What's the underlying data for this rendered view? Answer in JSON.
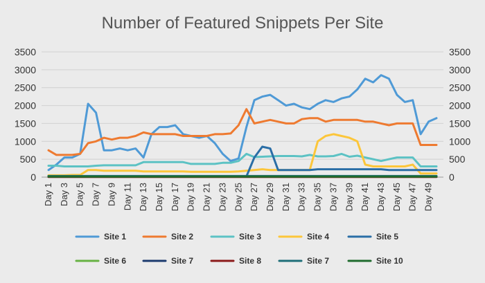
{
  "chart_data": {
    "type": "line",
    "title": "Number of Featured Snippets Per Site",
    "xlabel": "",
    "ylabel": "",
    "ylim": [
      0,
      3500
    ],
    "yticks": [
      0,
      500,
      1000,
      1500,
      2000,
      2500,
      3000,
      3500
    ],
    "secondary_yticks": [
      0,
      500,
      1000,
      1500,
      2000,
      2500,
      3000,
      3500
    ],
    "grid": true,
    "legend_position": "bottom",
    "x": [
      "Day 1",
      "Day 2",
      "Day 3",
      "Day 4",
      "Day 5",
      "Day 6",
      "Day 7",
      "Day 8",
      "Day 9",
      "Day 10",
      "Day 11",
      "Day 12",
      "Day 13",
      "Day 14",
      "Day 15",
      "Day 16",
      "Day 17",
      "Day 18",
      "Day 19",
      "Day 20",
      "Day 21",
      "Day 22",
      "Day 23",
      "Day 24",
      "Day 25",
      "Day 26",
      "Day 27",
      "Day 28",
      "Day 29",
      "Day 30",
      "Day 31",
      "Day 32",
      "Day 33",
      "Day 34",
      "Day 35",
      "Day 36",
      "Day 37",
      "Day 38",
      "Day 39",
      "Day 40",
      "Day 41",
      "Day 42",
      "Day 43",
      "Day 44",
      "Day 45",
      "Day 46",
      "Day 47",
      "Day 48",
      "Day 49",
      "Day 50"
    ],
    "x_tick_labels_shown": [
      "Day 1",
      "Day 3",
      "Day 5",
      "Day 7",
      "Day 9",
      "Day 11",
      "Day 13",
      "Day 15",
      "Day 17",
      "Day 19",
      "Day 21",
      "Day 23",
      "Day 25",
      "Day 27",
      "Day 29",
      "Day 31",
      "Day 33",
      "Day 35",
      "Day 37",
      "Day 39",
      "Day 41",
      "Day 43",
      "Day 45",
      "Day 47",
      "Day 49"
    ],
    "series": [
      {
        "name": "Site 1",
        "color": "#4f9ad6",
        "values": [
          200,
          350,
          550,
          550,
          650,
          2050,
          1800,
          750,
          750,
          800,
          750,
          800,
          550,
          1200,
          1400,
          1400,
          1450,
          1200,
          1150,
          1100,
          1150,
          950,
          650,
          450,
          520,
          1400,
          2150,
          2250,
          2300,
          2150,
          2000,
          2050,
          1950,
          1900,
          2050,
          2150,
          2100,
          2200,
          2250,
          2450,
          2750,
          2650,
          2850,
          2750,
          2300,
          2100,
          2150,
          1200,
          1550,
          1650
        ]
      },
      {
        "name": "Site 2",
        "color": "#ee7a30",
        "values": [
          750,
          620,
          620,
          620,
          650,
          950,
          1000,
          1100,
          1050,
          1100,
          1100,
          1150,
          1250,
          1200,
          1200,
          1200,
          1200,
          1150,
          1150,
          1150,
          1150,
          1200,
          1200,
          1220,
          1450,
          1900,
          1500,
          1550,
          1600,
          1550,
          1500,
          1500,
          1620,
          1650,
          1650,
          1550,
          1600,
          1600,
          1600,
          1600,
          1550,
          1550,
          1500,
          1450,
          1500,
          1500,
          1500,
          900,
          900,
          900
        ]
      },
      {
        "name": "Site 3",
        "color": "#5cc2c4",
        "values": [
          320,
          320,
          300,
          300,
          300,
          300,
          320,
          330,
          330,
          330,
          330,
          330,
          420,
          420,
          420,
          420,
          420,
          420,
          370,
          370,
          370,
          370,
          400,
          400,
          450,
          650,
          560,
          570,
          580,
          590,
          590,
          590,
          580,
          620,
          580,
          580,
          590,
          650,
          570,
          600,
          550,
          500,
          450,
          500,
          550,
          550,
          550,
          300,
          300,
          300
        ]
      },
      {
        "name": "Site 4",
        "color": "#fcc63a",
        "values": [
          50,
          50,
          50,
          60,
          60,
          200,
          200,
          180,
          180,
          180,
          180,
          180,
          160,
          160,
          160,
          160,
          160,
          160,
          150,
          150,
          150,
          150,
          150,
          150,
          160,
          180,
          200,
          220,
          200,
          200,
          200,
          200,
          200,
          200,
          1000,
          1150,
          1200,
          1150,
          1100,
          1000,
          350,
          300,
          300,
          300,
          300,
          300,
          350,
          100,
          100,
          100
        ]
      },
      {
        "name": "Site 5",
        "color": "#2a6ea6",
        "values": [
          20,
          20,
          20,
          20,
          20,
          20,
          20,
          20,
          20,
          20,
          20,
          20,
          20,
          20,
          20,
          20,
          20,
          20,
          20,
          20,
          20,
          20,
          20,
          20,
          20,
          20,
          550,
          850,
          800,
          200,
          200,
          200,
          200,
          200,
          220,
          220,
          220,
          220,
          220,
          220,
          220,
          220,
          220,
          200,
          200,
          200,
          200,
          200,
          200,
          200
        ]
      },
      {
        "name": "Site 6",
        "color": "#67b243",
        "values": [
          20,
          20,
          20,
          20,
          20,
          20,
          20,
          20,
          20,
          20,
          20,
          20,
          20,
          20,
          20,
          20,
          20,
          20,
          20,
          20,
          20,
          20,
          20,
          20,
          20,
          20,
          20,
          20,
          20,
          20,
          20,
          20,
          20,
          20,
          20,
          20,
          20,
          20,
          20,
          20,
          20,
          20,
          20,
          20,
          20,
          20,
          20,
          20,
          20,
          20
        ]
      },
      {
        "name": "Site 7",
        "color": "#1b3a6e",
        "values": [
          10,
          10,
          10,
          10,
          10,
          10,
          10,
          10,
          10,
          10,
          10,
          10,
          10,
          10,
          10,
          10,
          10,
          10,
          10,
          10,
          10,
          10,
          10,
          10,
          10,
          10,
          10,
          10,
          10,
          10,
          10,
          10,
          10,
          10,
          10,
          10,
          10,
          10,
          10,
          10,
          10,
          10,
          10,
          10,
          10,
          10,
          10,
          10,
          10,
          10
        ]
      },
      {
        "name": "Site 8",
        "color": "#8b1a1a",
        "values": [
          5,
          5,
          5,
          5,
          5,
          5,
          5,
          5,
          5,
          5,
          5,
          5,
          5,
          5,
          5,
          5,
          5,
          5,
          5,
          5,
          5,
          5,
          5,
          5,
          5,
          5,
          5,
          5,
          5,
          5,
          5,
          5,
          5,
          5,
          5,
          5,
          5,
          5,
          5,
          5,
          5,
          5,
          5,
          5,
          5,
          5,
          5,
          5,
          5,
          5
        ]
      },
      {
        "name": "Site 7",
        "color": "#1e6e78",
        "values": [
          30,
          30,
          30,
          30,
          30,
          30,
          30,
          30,
          30,
          30,
          30,
          30,
          30,
          30,
          30,
          30,
          30,
          30,
          30,
          30,
          30,
          30,
          30,
          30,
          30,
          30,
          30,
          30,
          30,
          30,
          30,
          30,
          30,
          30,
          30,
          30,
          30,
          30,
          30,
          30,
          30,
          30,
          30,
          30,
          30,
          30,
          30,
          30,
          30,
          30
        ]
      },
      {
        "name": "Site 10",
        "color": "#1f6b2e",
        "values": [
          15,
          15,
          15,
          15,
          15,
          15,
          15,
          15,
          15,
          15,
          15,
          15,
          15,
          15,
          15,
          15,
          15,
          15,
          15,
          15,
          15,
          15,
          15,
          15,
          15,
          15,
          15,
          15,
          15,
          15,
          15,
          15,
          15,
          15,
          15,
          15,
          15,
          15,
          15,
          15,
          15,
          15,
          15,
          15,
          15,
          15,
          15,
          15,
          15,
          15
        ]
      }
    ]
  }
}
